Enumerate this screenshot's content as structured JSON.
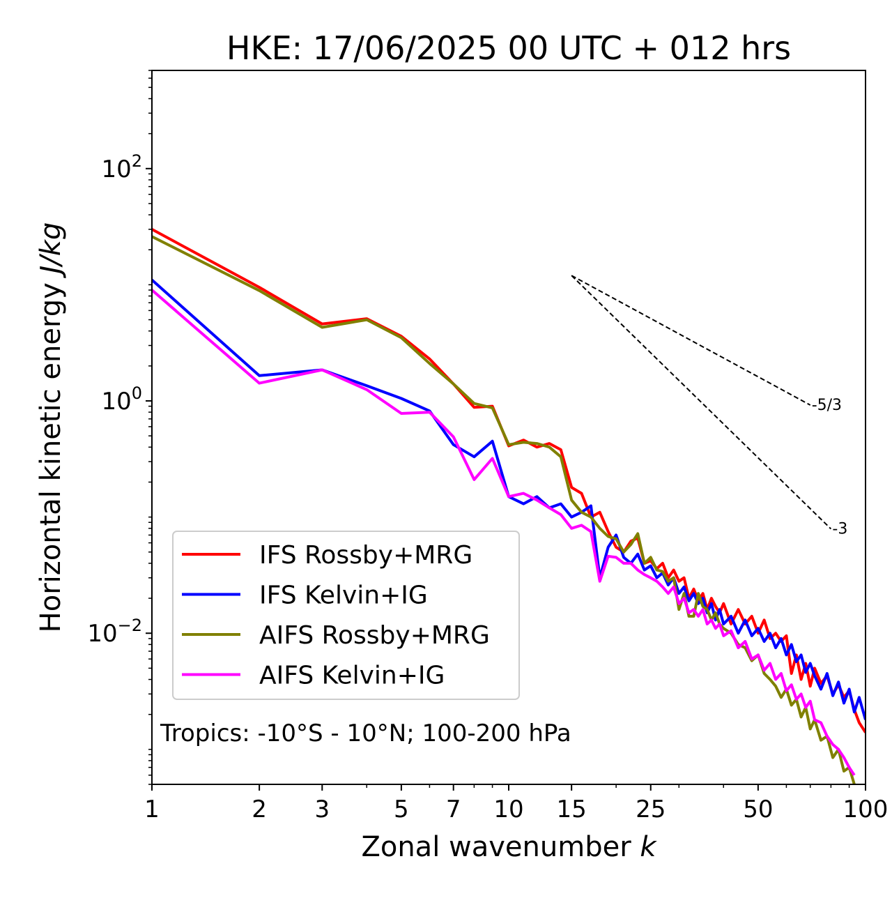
{
  "chart_data": {
    "type": "line",
    "title": "HKE: 17/06/2025 00 UTC + 012 hrs",
    "xlabel": "Zonal wavenumber",
    "xlabel_var": "k",
    "ylabel": "Horizontal kinetic energy",
    "ylabel_units": "J/kg",
    "xscale": "log",
    "yscale": "log",
    "xlim": [
      1,
      100
    ],
    "ylim": [
      0.0005,
      700
    ],
    "x_ticks": [
      1,
      2,
      3,
      5,
      7,
      10,
      15,
      25,
      50,
      100
    ],
    "x_tick_labels": [
      "1",
      "2",
      "3",
      "5",
      "7",
      "10",
      "15",
      "25",
      "50",
      "100"
    ],
    "y_ticks": [
      0.01,
      1,
      100
    ],
    "y_tick_labels": [
      {
        "base": "10",
        "exp": "−2"
      },
      {
        "base": "10",
        "exp": "0"
      },
      {
        "base": "10",
        "exp": "2"
      }
    ],
    "annotation": "Tropics: -10°S - 10°N; 100-200 hPa",
    "legend_position": "lower-left",
    "reference_lines": [
      {
        "label": "-5/3",
        "slope": -1.6667,
        "x_start": 15,
        "x_end": 70,
        "y_start": 12.0,
        "color": "#000000"
      },
      {
        "label": "-3",
        "slope": -3,
        "x_start": 15,
        "x_end": 80,
        "y_start": 12.0,
        "color": "#000000"
      }
    ],
    "series": [
      {
        "name": "IFS Rossby+MRG",
        "color": "#ff0000",
        "points": [
          [
            1,
            30
          ],
          [
            2,
            9.5
          ],
          [
            3,
            4.6
          ],
          [
            4,
            5.1
          ],
          [
            5,
            3.6
          ],
          [
            6,
            2.3
          ],
          [
            7,
            1.4
          ],
          [
            8,
            0.88
          ],
          [
            9,
            0.9
          ],
          [
            10,
            0.41
          ],
          [
            11,
            0.46
          ],
          [
            12,
            0.4
          ],
          [
            13,
            0.43
          ],
          [
            14,
            0.38
          ],
          [
            15,
            0.18
          ],
          [
            16,
            0.16
          ],
          [
            17,
            0.1
          ],
          [
            18,
            0.11
          ],
          [
            19,
            0.075
          ],
          [
            20,
            0.055
          ],
          [
            21,
            0.05
          ],
          [
            22,
            0.062
          ],
          [
            23,
            0.066
          ],
          [
            24,
            0.04
          ],
          [
            25,
            0.042
          ],
          [
            26,
            0.036
          ],
          [
            27,
            0.04
          ],
          [
            28,
            0.03
          ],
          [
            29,
            0.035
          ],
          [
            30,
            0.028
          ],
          [
            31,
            0.03
          ],
          [
            32,
            0.02
          ],
          [
            33,
            0.024
          ],
          [
            34,
            0.019
          ],
          [
            35,
            0.022
          ],
          [
            36,
            0.016
          ],
          [
            37,
            0.02
          ],
          [
            38,
            0.017
          ],
          [
            39,
            0.015
          ],
          [
            40,
            0.018
          ],
          [
            42,
            0.012
          ],
          [
            44,
            0.016
          ],
          [
            46,
            0.012
          ],
          [
            48,
            0.014
          ],
          [
            50,
            0.01
          ],
          [
            52,
            0.013
          ],
          [
            54,
            0.009
          ],
          [
            56,
            0.01
          ],
          [
            58,
            0.0085
          ],
          [
            60,
            0.0095
          ],
          [
            62,
            0.0045
          ],
          [
            64,
            0.0065
          ],
          [
            66,
            0.004
          ],
          [
            68,
            0.0055
          ],
          [
            70,
            0.0035
          ],
          [
            72,
            0.005
          ],
          [
            75,
            0.0037
          ],
          [
            78,
            0.0043
          ],
          [
            81,
            0.003
          ],
          [
            84,
            0.0036
          ],
          [
            87,
            0.0028
          ],
          [
            90,
            0.0032
          ],
          [
            93,
            0.0022
          ],
          [
            96,
            0.0017
          ],
          [
            100,
            0.0014
          ]
        ]
      },
      {
        "name": "IFS Kelvin+IG",
        "color": "#0000ff",
        "points": [
          [
            1,
            11
          ],
          [
            2,
            1.65
          ],
          [
            3,
            1.85
          ],
          [
            4,
            1.35
          ],
          [
            5,
            1.05
          ],
          [
            6,
            0.82
          ],
          [
            7,
            0.42
          ],
          [
            8,
            0.33
          ],
          [
            9,
            0.45
          ],
          [
            10,
            0.15
          ],
          [
            11,
            0.13
          ],
          [
            12,
            0.15
          ],
          [
            13,
            0.12
          ],
          [
            14,
            0.13
          ],
          [
            15,
            0.1
          ],
          [
            16,
            0.11
          ],
          [
            17,
            0.125
          ],
          [
            18,
            0.03
          ],
          [
            19,
            0.055
          ],
          [
            20,
            0.07
          ],
          [
            21,
            0.045
          ],
          [
            22,
            0.04
          ],
          [
            23,
            0.048
          ],
          [
            24,
            0.035
          ],
          [
            25,
            0.038
          ],
          [
            26,
            0.03
          ],
          [
            27,
            0.033
          ],
          [
            28,
            0.026
          ],
          [
            29,
            0.03
          ],
          [
            30,
            0.022
          ],
          [
            31,
            0.025
          ],
          [
            32,
            0.019
          ],
          [
            33,
            0.022
          ],
          [
            34,
            0.018
          ],
          [
            35,
            0.02
          ],
          [
            36,
            0.015
          ],
          [
            37,
            0.018
          ],
          [
            38,
            0.013
          ],
          [
            39,
            0.016
          ],
          [
            40,
            0.012
          ],
          [
            42,
            0.014
          ],
          [
            44,
            0.01
          ],
          [
            46,
            0.013
          ],
          [
            48,
            0.0095
          ],
          [
            50,
            0.011
          ],
          [
            52,
            0.0085
          ],
          [
            54,
            0.01
          ],
          [
            56,
            0.0075
          ],
          [
            58,
            0.009
          ],
          [
            60,
            0.0065
          ],
          [
            62,
            0.008
          ],
          [
            64,
            0.0057
          ],
          [
            66,
            0.0065
          ],
          [
            68,
            0.0046
          ],
          [
            70,
            0.0055
          ],
          [
            72,
            0.0043
          ],
          [
            75,
            0.0033
          ],
          [
            78,
            0.0045
          ],
          [
            81,
            0.0029
          ],
          [
            84,
            0.0038
          ],
          [
            87,
            0.0025
          ],
          [
            90,
            0.0033
          ],
          [
            93,
            0.0021
          ],
          [
            96,
            0.0028
          ],
          [
            100,
            0.0018
          ]
        ]
      },
      {
        "name": "AIFS Rossby+MRG",
        "color": "#808000",
        "points": [
          [
            1,
            26
          ],
          [
            2,
            8.9
          ],
          [
            3,
            4.3
          ],
          [
            4,
            5.0
          ],
          [
            5,
            3.5
          ],
          [
            6,
            2.1
          ],
          [
            7,
            1.4
          ],
          [
            8,
            0.95
          ],
          [
            9,
            0.87
          ],
          [
            10,
            0.42
          ],
          [
            11,
            0.44
          ],
          [
            12,
            0.43
          ],
          [
            13,
            0.4
          ],
          [
            14,
            0.33
          ],
          [
            15,
            0.14
          ],
          [
            16,
            0.11
          ],
          [
            17,
            0.1
          ],
          [
            18,
            0.08
          ],
          [
            19,
            0.068
          ],
          [
            20,
            0.065
          ],
          [
            21,
            0.05
          ],
          [
            22,
            0.058
          ],
          [
            23,
            0.072
          ],
          [
            24,
            0.04
          ],
          [
            25,
            0.045
          ],
          [
            26,
            0.035
          ],
          [
            27,
            0.034
          ],
          [
            28,
            0.028
          ],
          [
            29,
            0.03
          ],
          [
            30,
            0.016
          ],
          [
            31,
            0.022
          ],
          [
            32,
            0.014
          ],
          [
            33,
            0.014
          ],
          [
            34,
            0.022
          ],
          [
            35,
            0.017
          ],
          [
            36,
            0.016
          ],
          [
            37,
            0.013
          ],
          [
            38,
            0.015
          ],
          [
            39,
            0.012
          ],
          [
            40,
            0.011
          ],
          [
            42,
            0.01
          ],
          [
            44,
            0.008
          ],
          [
            46,
            0.0075
          ],
          [
            48,
            0.0058
          ],
          [
            50,
            0.0065
          ],
          [
            52,
            0.0045
          ],
          [
            54,
            0.004
          ],
          [
            56,
            0.0035
          ],
          [
            58,
            0.0028
          ],
          [
            60,
            0.0033
          ],
          [
            62,
            0.0024
          ],
          [
            64,
            0.0027
          ],
          [
            66,
            0.0019
          ],
          [
            68,
            0.0023
          ],
          [
            70,
            0.0015
          ],
          [
            72,
            0.0018
          ],
          [
            75,
            0.0012
          ],
          [
            78,
            0.0013
          ],
          [
            81,
            0.00085
          ],
          [
            84,
            0.001
          ],
          [
            87,
            0.00065
          ],
          [
            90,
            0.0007
          ],
          [
            93,
            0.0005
          ]
        ]
      },
      {
        "name": "AIFS Kelvin+IG",
        "color": "#ff00ff",
        "points": [
          [
            1,
            9
          ],
          [
            2,
            1.42
          ],
          [
            3,
            1.85
          ],
          [
            4,
            1.25
          ],
          [
            5,
            0.78
          ],
          [
            6,
            0.8
          ],
          [
            7,
            0.49
          ],
          [
            8,
            0.21
          ],
          [
            9,
            0.32
          ],
          [
            10,
            0.15
          ],
          [
            11,
            0.16
          ],
          [
            12,
            0.14
          ],
          [
            13,
            0.12
          ],
          [
            14,
            0.105
          ],
          [
            15,
            0.08
          ],
          [
            16,
            0.085
          ],
          [
            17,
            0.075
          ],
          [
            18,
            0.028
          ],
          [
            19,
            0.046
          ],
          [
            20,
            0.045
          ],
          [
            21,
            0.04
          ],
          [
            22,
            0.04
          ],
          [
            23,
            0.035
          ],
          [
            24,
            0.032
          ],
          [
            25,
            0.03
          ],
          [
            26,
            0.028
          ],
          [
            27,
            0.025
          ],
          [
            28,
            0.022
          ],
          [
            29,
            0.025
          ],
          [
            30,
            0.018
          ],
          [
            31,
            0.02
          ],
          [
            32,
            0.015
          ],
          [
            33,
            0.016
          ],
          [
            34,
            0.014
          ],
          [
            35,
            0.016
          ],
          [
            36,
            0.012
          ],
          [
            37,
            0.013
          ],
          [
            38,
            0.011
          ],
          [
            39,
            0.012
          ],
          [
            40,
            0.0095
          ],
          [
            42,
            0.0105
          ],
          [
            44,
            0.0075
          ],
          [
            46,
            0.0085
          ],
          [
            48,
            0.006
          ],
          [
            50,
            0.0065
          ],
          [
            52,
            0.0048
          ],
          [
            54,
            0.0055
          ],
          [
            56,
            0.004
          ],
          [
            58,
            0.0045
          ],
          [
            60,
            0.0032
          ],
          [
            62,
            0.0036
          ],
          [
            64,
            0.0027
          ],
          [
            66,
            0.003
          ],
          [
            68,
            0.0023
          ],
          [
            70,
            0.0026
          ],
          [
            72,
            0.0018
          ],
          [
            75,
            0.0017
          ],
          [
            78,
            0.0013
          ],
          [
            81,
            0.0011
          ],
          [
            84,
            0.001
          ],
          [
            87,
            0.00085
          ],
          [
            90,
            0.0007
          ],
          [
            93,
            0.0006
          ]
        ]
      }
    ]
  }
}
